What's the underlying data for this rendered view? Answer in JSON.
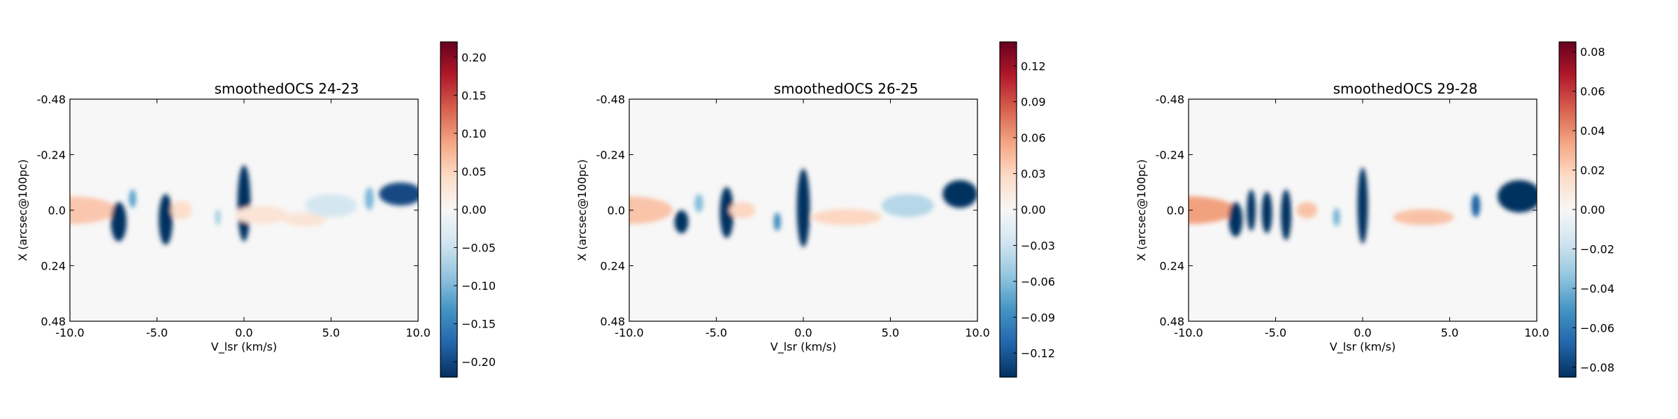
{
  "chart_data": [
    {
      "type": "heatmap",
      "title": "smoothedOCS 24-23",
      "xlabel": "V_lsr (km/s)",
      "ylabel": "X (arcsec@100pc)",
      "xlim": [
        -10.0,
        10.0
      ],
      "ylim": [
        -0.48,
        0.48
      ],
      "x_ticks": [
        "-10.0",
        "-5.0",
        "0.0",
        "5.0",
        "10.0"
      ],
      "y_ticks": [
        "-0.48",
        "-0.24",
        "0.0",
        "0.24",
        "0.48"
      ],
      "colorbar": {
        "min": -0.22,
        "max": 0.22,
        "ticks": [
          "0.20",
          "0.15",
          "0.10",
          "0.05",
          "0.00",
          "−0.05",
          "−0.10",
          "−0.15",
          "−0.20"
        ],
        "tick_values": [
          0.2,
          0.15,
          0.1,
          0.05,
          0.0,
          -0.05,
          -0.1,
          -0.15,
          -0.2
        ]
      },
      "features": [
        {
          "v": -10.0,
          "v_width": 5.5,
          "x": 0.0,
          "x_width": 0.12,
          "value": 0.06
        },
        {
          "v": -7.2,
          "v_width": 0.9,
          "x": 0.05,
          "x_width": 0.17,
          "value": -0.22
        },
        {
          "v": -6.4,
          "v_width": 0.4,
          "x": -0.05,
          "x_width": 0.08,
          "value": -0.12
        },
        {
          "v": -4.5,
          "v_width": 0.8,
          "x": 0.04,
          "x_width": 0.22,
          "value": -0.22
        },
        {
          "v": -3.6,
          "v_width": 1.2,
          "x": 0.0,
          "x_width": 0.08,
          "value": 0.04
        },
        {
          "v": -1.5,
          "v_width": 0.3,
          "x": 0.03,
          "x_width": 0.07,
          "value": -0.08
        },
        {
          "v": 0.0,
          "v_width": 0.75,
          "x": -0.03,
          "x_width": 0.33,
          "value": -0.22
        },
        {
          "v": 1.0,
          "v_width": 3.0,
          "x": 0.02,
          "x_width": 0.08,
          "value": 0.03
        },
        {
          "v": 3.5,
          "v_width": 2.5,
          "x": 0.04,
          "x_width": 0.06,
          "value": 0.03
        },
        {
          "v": 5.0,
          "v_width": 3.0,
          "x": -0.02,
          "x_width": 0.1,
          "value": -0.04
        },
        {
          "v": 7.2,
          "v_width": 0.5,
          "x": -0.05,
          "x_width": 0.1,
          "value": -0.1
        },
        {
          "v": 9.0,
          "v_width": 2.5,
          "x": -0.07,
          "x_width": 0.1,
          "value": -0.2
        }
      ]
    },
    {
      "type": "heatmap",
      "title": "smoothedOCS 26-25",
      "xlabel": "V_lsr (km/s)",
      "ylabel": "X (arcsec@100pc)",
      "xlim": [
        -10.0,
        10.0
      ],
      "ylim": [
        -0.48,
        0.48
      ],
      "x_ticks": [
        "-10.0",
        "-5.0",
        "0.0",
        "5.0",
        "10.0"
      ],
      "y_ticks": [
        "-0.48",
        "-0.24",
        "0.0",
        "0.24",
        "0.48"
      ],
      "colorbar": {
        "min": -0.14,
        "max": 0.14,
        "ticks": [
          "0.12",
          "0.09",
          "0.06",
          "0.03",
          "0.00",
          "−0.03",
          "−0.06",
          "−0.09",
          "−0.12"
        ],
        "tick_values": [
          0.12,
          0.09,
          0.06,
          0.03,
          0.0,
          -0.03,
          -0.06,
          -0.09,
          -0.12
        ]
      },
      "features": [
        {
          "v": -10.0,
          "v_width": 5.0,
          "x": 0.0,
          "x_width": 0.12,
          "value": 0.04
        },
        {
          "v": -7.0,
          "v_width": 0.8,
          "x": 0.05,
          "x_width": 0.1,
          "value": -0.14
        },
        {
          "v": -6.0,
          "v_width": 0.5,
          "x": -0.03,
          "x_width": 0.08,
          "value": -0.06
        },
        {
          "v": -4.4,
          "v_width": 0.8,
          "x": 0.01,
          "x_width": 0.22,
          "value": -0.14
        },
        {
          "v": -3.5,
          "v_width": 1.5,
          "x": 0.0,
          "x_width": 0.07,
          "value": 0.03
        },
        {
          "v": -1.5,
          "v_width": 0.4,
          "x": 0.05,
          "x_width": 0.08,
          "value": -0.09
        },
        {
          "v": 0.0,
          "v_width": 0.75,
          "x": -0.01,
          "x_width": 0.34,
          "value": -0.14
        },
        {
          "v": 2.5,
          "v_width": 4.0,
          "x": 0.03,
          "x_width": 0.07,
          "value": 0.03
        },
        {
          "v": 6.0,
          "v_width": 3.0,
          "x": -0.02,
          "x_width": 0.1,
          "value": -0.04
        },
        {
          "v": 9.0,
          "v_width": 2.0,
          "x": -0.07,
          "x_width": 0.12,
          "value": -0.14
        }
      ]
    },
    {
      "type": "heatmap",
      "title": "smoothedOCS 29-28",
      "xlabel": "V_lsr (km/s)",
      "ylabel": "X (arcsec@100pc)",
      "xlim": [
        -10.0,
        10.0
      ],
      "ylim": [
        -0.48,
        0.48
      ],
      "x_ticks": [
        "-10.0",
        "-5.0",
        "0.0",
        "5.0",
        "10.0"
      ],
      "y_ticks": [
        "-0.48",
        "-0.24",
        "0.0",
        "0.24",
        "0.48"
      ],
      "colorbar": {
        "min": -0.085,
        "max": 0.085,
        "ticks": [
          "0.08",
          "0.06",
          "0.04",
          "0.02",
          "0.00",
          "−0.02",
          "−0.04",
          "−0.06",
          "−0.08"
        ],
        "tick_values": [
          0.08,
          0.06,
          0.04,
          0.02,
          0.0,
          -0.02,
          -0.04,
          -0.06,
          -0.08
        ]
      },
      "features": [
        {
          "v": -10.0,
          "v_width": 5.5,
          "x": 0.0,
          "x_width": 0.12,
          "value": 0.035
        },
        {
          "v": -7.3,
          "v_width": 0.8,
          "x": 0.04,
          "x_width": 0.15,
          "value": -0.085
        },
        {
          "v": -6.4,
          "v_width": 0.5,
          "x": 0.0,
          "x_width": 0.18,
          "value": -0.085
        },
        {
          "v": -5.5,
          "v_width": 0.6,
          "x": 0.01,
          "x_width": 0.18,
          "value": -0.085
        },
        {
          "v": -4.4,
          "v_width": 0.6,
          "x": 0.02,
          "x_width": 0.22,
          "value": -0.085
        },
        {
          "v": -3.2,
          "v_width": 1.2,
          "x": 0.0,
          "x_width": 0.07,
          "value": 0.025
        },
        {
          "v": -1.5,
          "v_width": 0.4,
          "x": 0.03,
          "x_width": 0.08,
          "value": -0.04
        },
        {
          "v": 0.0,
          "v_width": 0.6,
          "x": -0.02,
          "x_width": 0.33,
          "value": -0.085
        },
        {
          "v": 3.5,
          "v_width": 3.5,
          "x": 0.03,
          "x_width": 0.07,
          "value": 0.025
        },
        {
          "v": 6.5,
          "v_width": 0.5,
          "x": -0.02,
          "x_width": 0.1,
          "value": -0.07
        },
        {
          "v": 9.0,
          "v_width": 2.5,
          "x": -0.06,
          "x_width": 0.14,
          "value": -0.085
        }
      ]
    }
  ]
}
